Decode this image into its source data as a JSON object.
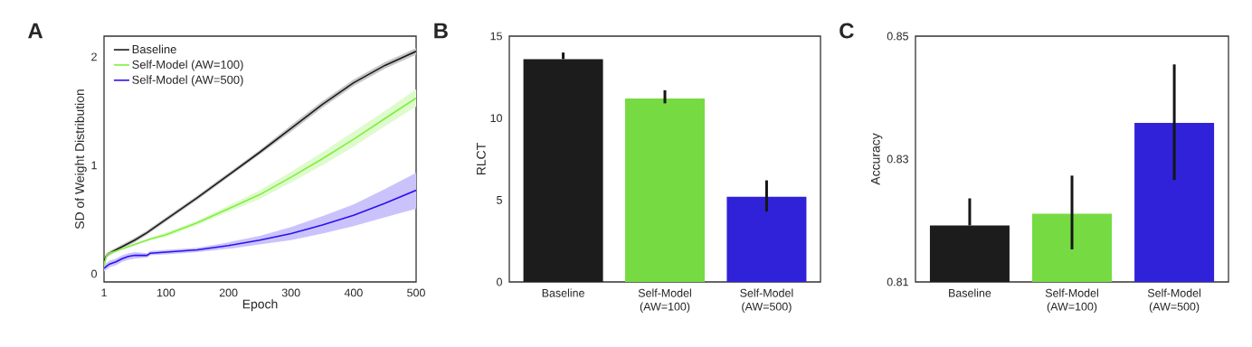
{
  "chart_data": [
    {
      "type": "line",
      "title": "A",
      "xlabel": "Epoch",
      "ylabel": "SD of Weight Distribution",
      "xlim": [
        1,
        500
      ],
      "ylim": [
        -0.075,
        2.19
      ],
      "xticks": [
        1,
        100,
        200,
        300,
        400,
        500
      ],
      "yticks": [
        0,
        1,
        2
      ],
      "legend": "top left",
      "x": [
        1,
        5,
        10,
        20,
        30,
        40,
        50,
        70,
        75,
        100,
        150,
        200,
        250,
        300,
        350,
        400,
        450,
        500
      ],
      "series": [
        {
          "name": "Baseline",
          "color": "#1a1a1a",
          "values": [
            0.12,
            0.17,
            0.19,
            0.22,
            0.25,
            0.28,
            0.31,
            0.38,
            0.4,
            0.5,
            0.7,
            0.91,
            1.12,
            1.34,
            1.56,
            1.76,
            1.92,
            2.05
          ],
          "lower": [
            0.1,
            0.15,
            0.17,
            0.2,
            0.23,
            0.26,
            0.29,
            0.36,
            0.38,
            0.48,
            0.68,
            0.89,
            1.1,
            1.31,
            1.53,
            1.73,
            1.89,
            2.02
          ],
          "upper": [
            0.14,
            0.19,
            0.21,
            0.24,
            0.27,
            0.3,
            0.33,
            0.4,
            0.42,
            0.52,
            0.72,
            0.93,
            1.14,
            1.37,
            1.59,
            1.79,
            1.95,
            2.08
          ]
        },
        {
          "name": "Self-Model (AW=100)",
          "color": "#7ef03c",
          "values": [
            0.07,
            0.17,
            0.19,
            0.21,
            0.23,
            0.25,
            0.27,
            0.31,
            0.32,
            0.36,
            0.47,
            0.6,
            0.73,
            0.89,
            1.06,
            1.24,
            1.43,
            1.62
          ],
          "lower": [
            0.06,
            0.16,
            0.18,
            0.2,
            0.22,
            0.24,
            0.26,
            0.3,
            0.31,
            0.34,
            0.45,
            0.57,
            0.69,
            0.84,
            1.0,
            1.17,
            1.36,
            1.54
          ],
          "upper": [
            0.08,
            0.18,
            0.2,
            0.22,
            0.24,
            0.26,
            0.28,
            0.32,
            0.33,
            0.38,
            0.49,
            0.63,
            0.77,
            0.94,
            1.12,
            1.31,
            1.5,
            1.7
          ]
        },
        {
          "name": "Self-Model (AW=500)",
          "color": "#2a10f0",
          "values": [
            0.05,
            0.07,
            0.09,
            0.11,
            0.14,
            0.16,
            0.17,
            0.17,
            0.19,
            0.2,
            0.22,
            0.26,
            0.31,
            0.37,
            0.45,
            0.54,
            0.65,
            0.77
          ],
          "lower": [
            0.02,
            0.04,
            0.06,
            0.08,
            0.11,
            0.13,
            0.14,
            0.15,
            0.17,
            0.18,
            0.2,
            0.23,
            0.27,
            0.31,
            0.37,
            0.44,
            0.52,
            0.6
          ],
          "upper": [
            0.08,
            0.1,
            0.12,
            0.14,
            0.17,
            0.19,
            0.2,
            0.19,
            0.21,
            0.22,
            0.24,
            0.29,
            0.35,
            0.43,
            0.53,
            0.64,
            0.78,
            0.93
          ]
        }
      ]
    },
    {
      "type": "bar",
      "title": "B",
      "ylabel": "RLCT",
      "ylim": [
        0,
        15
      ],
      "yticks": [
        0,
        5,
        10,
        15
      ],
      "categories": [
        "Baseline",
        "Self-Model (AW=100)",
        "Self-Model (AW=500)"
      ],
      "values": [
        13.6,
        11.2,
        5.2
      ],
      "colors": [
        "#1c1c1c",
        "#76db42",
        "#3022d8"
      ],
      "errors": [
        [
          13.6,
          14.0
        ],
        [
          10.9,
          11.7
        ],
        [
          4.3,
          6.2
        ]
      ]
    },
    {
      "type": "bar",
      "title": "C",
      "ylabel": "Accuracy",
      "ylim": [
        0.81,
        0.85
      ],
      "yticks": [
        0.81,
        0.83,
        0.85
      ],
      "categories": [
        "Baseline",
        "Self-Model (AW=100)",
        "Self-Model (AW=500)"
      ],
      "values": [
        0.8192,
        0.8211,
        0.8359
      ],
      "colors": [
        "#1c1c1c",
        "#76db42",
        "#3022d8"
      ],
      "errors": [
        [
          0.8192,
          0.8236
        ],
        [
          0.8153,
          0.8273
        ],
        [
          0.8266,
          0.8454
        ]
      ]
    }
  ]
}
